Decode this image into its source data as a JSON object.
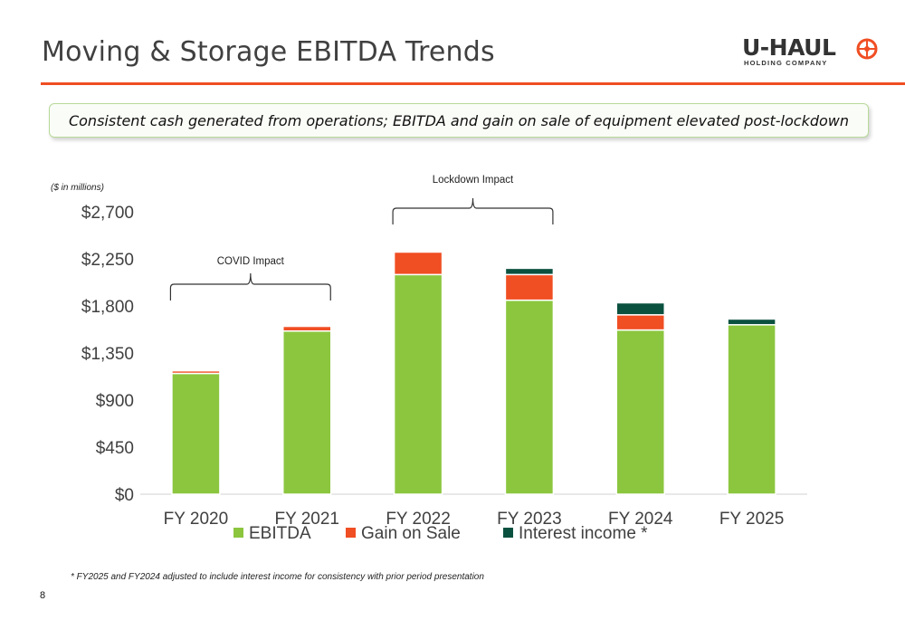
{
  "slide": {
    "title": "Moving & Storage EBITDA Trends",
    "callout": "Consistent cash generated from operations; EBITDA and gain on sale of equipment elevated post-lockdown",
    "units_note": "($ in millions)",
    "footnote": "* FY2025 and FY2024 adjusted to include interest income for consistency with prior period presentation",
    "page_number": "8",
    "logo": {
      "wordmark": "U-HAUL",
      "subtitle": "HOLDING COMPANY"
    },
    "accent_color": "#f04e23"
  },
  "chart_data": {
    "type": "bar",
    "stacked": true,
    "categories": [
      "FY 2020",
      "FY 2021",
      "FY 2022",
      "FY 2023",
      "FY 2024",
      "FY 2025"
    ],
    "series": [
      {
        "name": "EBITDA",
        "color": "#8cc63f",
        "values": [
          1155,
          1560,
          2100,
          1855,
          1570,
          1620
        ]
      },
      {
        "name": "Gain on Sale",
        "color": "#f04e23",
        "values": [
          25,
          45,
          215,
          245,
          145,
          0
        ]
      },
      {
        "name": "Interest income",
        "color": "#0b5140",
        "values": [
          0,
          0,
          0,
          60,
          115,
          55
        ]
      }
    ],
    "legend_suffix": "*",
    "yticks": [
      "$0",
      "$450",
      "$900",
      "$1,350",
      "$1,800",
      "$2,250",
      "$2,700"
    ],
    "ylim": [
      0,
      2700
    ],
    "annotations": [
      {
        "label": "COVID Impact",
        "from_category": 0,
        "to_category": 1
      },
      {
        "label": "Lockdown Impact",
        "from_category": 2,
        "to_category": 3
      }
    ],
    "legend_position": "bottom",
    "grid": false
  }
}
